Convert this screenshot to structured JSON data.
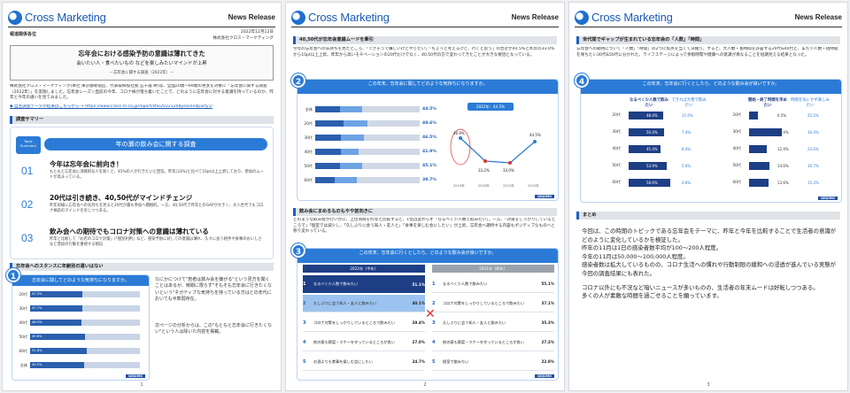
{
  "brand": {
    "name": "Cross Marketing",
    "release": "News Release"
  },
  "page1": {
    "addressee": "報道関係各位",
    "date": "2022年12月12日",
    "company": "株式会社クロス・マーケティング",
    "title": "忘年会における感染予防の意識は薄れてきた",
    "subtitle": "会いたい人・食べたいもの などを楽しみたいマインドが上昇",
    "subtitle2": "－忘年会に関する調査（2022年）－",
    "intro": "株式会社クロス・マーケティング(本社:東京都新宿区、代表取締役社長:五十嵐 幹)は、全国20歳～69歳の男女を対象に「忘年会に関する調査（2022年）」を実施しました。忘年会シーズン直前の今年、コロナ禍が落ち着いたことで、どのように忘年会に対する意識を持っているのか、昨年と今年の違いを見てみました。",
    "link_label": "◆ 自主調査データの結果はこちらから → https://www.cross-m.co.jp/report/life/20221208yearendparty1/",
    "summary_section": "調査サマリー",
    "topic_badge": "Topic Summary",
    "topic_title": "年の瀬の飲み会に関する調査",
    "points": [
      {
        "no": "01",
        "title": "今年は忘年会に前向き！",
        "body": "もともと忘年会に消極的な人を除くと、45%の人が行きたいと回答。昨年(33%)と比べて10pt以上上昇しており、参加のムードが高まっている。"
      },
      {
        "no": "02",
        "title": "20代は引き続き、40,50代がマインドチェンジ",
        "body": "昨年同様に忘年会への気持ちを見ると20代が最も参加へ積極的。一方、40,50代で昨年とのGAPが大きく、大人世代でもコロナ禍前のマインドを戻しつつある。"
      },
      {
        "no": "03",
        "title": "飲み会への期待でもコロナ対策への意識は薄れている",
        "body": "昨年と比較して「お店のコロナ対策」(「個室利用」など、感染予防に対しての意識は薄れ、久々に会う相手や食事のおいしさなど普段の行動を重視する傾向"
      }
    ],
    "stance_section": "忘年会へのスタンスに年齢別の違いはない",
    "chart_title": "忘年会に関してどのような気持ちになりますか。",
    "side_text": "なにかにつけて\"若者は飲み会を嫌がる\"という見方を聞くことはあるが、時期に限らず\"そもそも忘年会に行きたくないという\"ネガティブな気持ちを持っている方はどの年代においても半数弱存在。",
    "side_text2": "次ページの分析からは、この\"もともと忘年会に行きたくない\"という人は除いた内容を掲載。",
    "rows": [
      {
        "age": "20代",
        "value": "47.5%"
      },
      {
        "age": "30代",
        "value": "47.7%"
      },
      {
        "age": "40代",
        "value": "46.5%"
      },
      {
        "age": "50代",
        "value": "49.6%"
      },
      {
        "age": "60代",
        "value": "51.8%"
      },
      {
        "age": "全体",
        "value": "49.5%"
      }
    ],
    "page_no": "1"
  },
  "page2": {
    "section1": "40,50代が忘年会意識ムードを牽引",
    "text1": "今年の忘年会への気持ちを見たところ、「できそうで嫌しいけどやりたい」「ちょっと考えるけど、行くと思う」の合計が44.5%と昨年の33.0%から10pt以上上昇。昨年から高いモチベーションの20代だけでなく、40,50代の方で変わってきたことが大きな要因となっている。",
    "chart2_title": "この年末、忘年会に関してどのような気持ちになりますか。",
    "chart2_rows": [
      {
        "age": "全体",
        "value": "44.5%"
      },
      {
        "age": "20代",
        "value": "49.6%"
      },
      {
        "age": "30代",
        "value": "46.5%"
      },
      {
        "age": "40代",
        "value": "41.9%"
      },
      {
        "age": "50代",
        "value": "45.1%"
      },
      {
        "age": "60代",
        "value": "39.7%"
      }
    ],
    "chart2_pct": [
      23.6,
      27.0,
      24.5,
      24.2,
      23.8,
      19.0
    ],
    "trend_label": "2022年：44.5%",
    "trend_years": [
      "2019年",
      "2020年",
      "2021年",
      "2022年"
    ],
    "trend_values": [
      "46.9%",
      "33.2%",
      "33.0%",
      "44.5%"
    ],
    "section2": "飲み会にまめるものもやや前向きに",
    "text2": "どのような飲み会が行いかに、上位項目を昨年と比較すると、1位は変わらず「なるべく少人数で飲みたい」。一方、「対策をしっかりしているところで」「個室では減少し、「久しぶりに会う知人・友人と」「食事を楽しむ会にしたい」が上昇。忘年会へ期待する内容もポジティブなものへと移り変わっている。",
    "chart3_title": "この年末、忘年会に行くとしたら、どのような飲み会が良いですか。",
    "year_2022": "2022年（今年）",
    "year_2021": "2021年（昨年）",
    "rank2022": [
      {
        "n": "1",
        "t": "なるべく少人数で飲みたい",
        "v": "51.1%"
      },
      {
        "n": "2",
        "t": "久しぶりに会う知人・友人と飲みたい",
        "v": "40.1%"
      },
      {
        "n": "3",
        "t": "コロナ対策をしっかりしているところで飲みたい",
        "v": "29.4%"
      },
      {
        "n": "4",
        "t": "他の客も節度・マナーを守っているところが良い",
        "v": "27.0%"
      },
      {
        "n": "5",
        "t": "お酒よりも食事を楽しむ会にしたい",
        "v": "24.7%"
      }
    ],
    "rank2021": [
      {
        "n": "1",
        "t": "なるべく少人数で飲みたい",
        "v": "55.1%"
      },
      {
        "n": "2",
        "t": "コロナ対策をしっかりしているところで飲みたい",
        "v": "37.1%"
      },
      {
        "n": "3",
        "t": "久しぶりに会う知人・友人と飲みたい",
        "v": "35.3%"
      },
      {
        "n": "4",
        "t": "他の客も節度・マナーを守っているところが良い",
        "v": "27.2%"
      },
      {
        "n": "5",
        "t": "個室で飲みたい",
        "v": "22.8%"
      }
    ],
    "page_no": "2"
  },
  "page3": {
    "section1": "世代間でギャップが生まれている忘年会の「人数」「時間」",
    "text1": "忘年会への期待について「人数」「時間」の2つに焦点を当てて深掘り。すると、大人数・長時間を許容する20代&40代と、まだ少人数・短時間を保ちたい30代&50代に分かれた。ライフステージによって余暇時間や健康への意識が異なることを短期見える結果となった。",
    "chart4_title": "この年末、忘年会に行くとしたら、どのような飲み会が良いですか。",
    "left_headers": [
      "なるべく少人数で飲みたい",
      "できれば大勢で飲みたい"
    ],
    "right_headers": [
      "開始・終了時間を早めたい",
      "時間を気にせず楽しみたい"
    ],
    "ages": [
      "20代",
      "30代",
      "40代",
      "50代",
      "60代"
    ],
    "left_a": [
      "48.4%",
      "50.4%",
      "45.4%",
      "53.9%",
      "58.6%"
    ],
    "left_b": [
      "11.6%",
      "7.4%",
      "8.0%",
      "5.6%",
      "4.6%"
    ],
    "right_a": [
      "6.5%",
      "23.4%",
      "12.4%",
      "14.6%",
      "13.6%"
    ],
    "right_b": [
      "25.5%",
      "16.4%",
      "23.6%",
      "16.7%",
      "15.3%"
    ],
    "left_a_num": [
      48.4,
      50.4,
      45.4,
      53.9,
      58.6
    ],
    "right_a_num": [
      6.5,
      23.4,
      12.4,
      14.6,
      13.6
    ],
    "summary_section": "まとめ",
    "summary": [
      "今回は、この時期のトピックである忘年会をテーマに、昨年と今年を比較することで生活者の意識がどのように変化しているかを検証した。",
      "昨年の11月は1日の感染者数平均が100～200人程度。",
      "今年の11月は50,000～100,000人程度。",
      "感染者数は拡大しているものの、コロナ生活への慣れや行動制限の緩和への浸透が進んでいる実態が今回の調査結果にも表れた。",
      "コロナ以外にも不況など暗いニュースが多いものの、生活者の年末ムードは好転しつつある。",
      "多くの人が素敵な時間を過ごせることを願っています。"
    ],
    "page_no": "3"
  },
  "footer_tag": "QIQUMO",
  "colors": {
    "accent": "#2b7bd6",
    "dark": "#1e3f86",
    "red": "#dd3333"
  }
}
